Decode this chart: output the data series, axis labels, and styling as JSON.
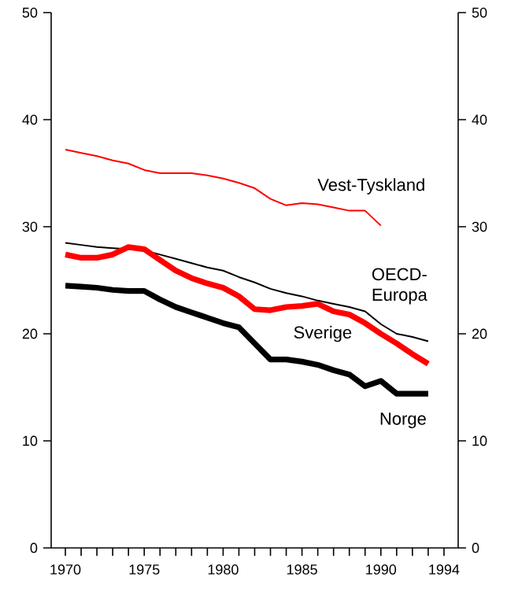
{
  "chart_data": {
    "type": "line",
    "x": [
      1970,
      1971,
      1972,
      1973,
      1974,
      1975,
      1976,
      1977,
      1978,
      1979,
      1980,
      1981,
      1982,
      1983,
      1984,
      1985,
      1986,
      1987,
      1988,
      1989,
      1990,
      1991,
      1992,
      1993
    ],
    "series": [
      {
        "name": "Vest-Tyskland",
        "color": "#ff0000",
        "values": [
          37.2,
          36.9,
          36.6,
          36.2,
          35.9,
          35.3,
          35.0,
          35.0,
          35.0,
          34.8,
          34.5,
          34.1,
          33.6,
          32.6,
          32.0,
          32.2,
          32.1,
          31.8,
          31.5,
          31.5,
          30.1,
          null,
          null,
          null
        ]
      },
      {
        "name": "OECD-Europa",
        "color": "#000000",
        "values": [
          28.5,
          28.3,
          28.1,
          28.0,
          27.9,
          27.8,
          27.4,
          27.0,
          26.6,
          26.2,
          25.9,
          25.3,
          24.8,
          24.2,
          23.8,
          23.5,
          23.1,
          22.8,
          22.5,
          22.1,
          20.9,
          20.0,
          19.7,
          19.3
        ]
      },
      {
        "name": "Sverige",
        "color": "#ff0000",
        "values": [
          27.4,
          27.1,
          27.1,
          27.4,
          28.1,
          27.9,
          26.9,
          25.9,
          25.2,
          24.7,
          24.3,
          23.5,
          22.3,
          22.2,
          22.5,
          22.6,
          22.8,
          22.1,
          21.8,
          21.0,
          20.0,
          19.1,
          18.1,
          17.2
        ]
      },
      {
        "name": "Norge",
        "color": "#000000",
        "values": [
          24.5,
          24.4,
          24.3,
          24.1,
          24.0,
          24.0,
          23.2,
          22.5,
          22.0,
          21.5,
          21.0,
          20.6,
          19.1,
          17.6,
          17.6,
          17.4,
          17.1,
          16.6,
          16.2,
          15.1,
          15.6,
          14.4,
          14.4,
          14.4
        ]
      }
    ],
    "xlim": [
      1969.1,
      1994.9
    ],
    "xticks": [
      1970,
      {
        "value": 1971,
        "label": null
      },
      {
        "value": 1972,
        "label": null
      },
      {
        "value": 1973,
        "label": null
      },
      {
        "value": 1974,
        "label": null
      },
      1975,
      {
        "value": 1976,
        "label": null
      },
      {
        "value": 1977,
        "label": null
      },
      {
        "value": 1978,
        "label": null
      },
      {
        "value": 1979,
        "label": null
      },
      1980,
      {
        "value": 1981,
        "label": null
      },
      {
        "value": 1982,
        "label": null
      },
      {
        "value": 1983,
        "label": null
      },
      {
        "value": 1984,
        "label": null
      },
      1985,
      {
        "value": 1986,
        "label": null
      },
      {
        "value": 1987,
        "label": null
      },
      {
        "value": 1988,
        "label": null
      },
      {
        "value": 1989,
        "label": null
      },
      1990,
      {
        "value": 1991,
        "label": null
      },
      {
        "value": 1992,
        "label": null
      },
      {
        "value": 1993,
        "label": null
      },
      1994
    ],
    "ylim": [
      0,
      50
    ],
    "yticks": [
      0,
      10,
      20,
      30,
      40,
      50
    ],
    "y2lim": [
      0,
      50
    ],
    "y2ticks": [
      0,
      10,
      20,
      30,
      40,
      50
    ],
    "legend": false,
    "grid": false,
    "marker": "none",
    "line_style": "solid"
  }
}
